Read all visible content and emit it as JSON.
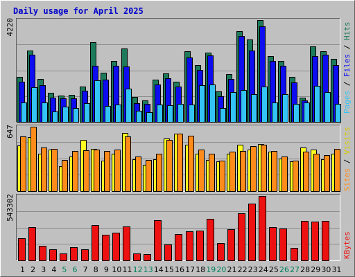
{
  "chart_data": [
    {
      "type": "bar",
      "title": "Daily usage for April 2025",
      "ymax_label": "4220",
      "ylim": [
        0,
        4220
      ],
      "right_labels": [
        "Pages",
        "Files",
        "Hits"
      ],
      "colors": {
        "hits": "#1d7a5a",
        "files": "#0d0df0",
        "pages": "#33c4f5"
      },
      "categories": [
        "1",
        "2",
        "3",
        "4",
        "5",
        "6",
        "7",
        "8",
        "9",
        "10",
        "11",
        "12",
        "13",
        "14",
        "15",
        "16",
        "17",
        "18",
        "19",
        "20",
        "21",
        "22",
        "23",
        "24",
        "25",
        "26",
        "27",
        "28",
        "29",
        "30",
        "31"
      ],
      "series": [
        {
          "name": "Hits",
          "values": [
            1850,
            2930,
            1775,
            1185,
            1075,
            1100,
            1460,
            3280,
            2020,
            2520,
            3030,
            1020,
            870,
            1735,
            1995,
            1640,
            2905,
            2330,
            2850,
            1255,
            1970,
            3730,
            3385,
            4185,
            2700,
            2500,
            1845,
            1010,
            3120,
            2900,
            2585
          ]
        },
        {
          "name": "Files",
          "values": [
            1665,
            2760,
            1520,
            1000,
            960,
            975,
            1270,
            2300,
            1735,
            2300,
            2285,
            780,
            740,
            1540,
            1800,
            1465,
            2650,
            2140,
            2750,
            1060,
            1755,
            3525,
            2930,
            3925,
            2520,
            2310,
            1620,
            880,
            2710,
            2770,
            2330
          ]
        },
        {
          "name": "Pages",
          "values": [
            785,
            1425,
            805,
            420,
            640,
            580,
            780,
            1700,
            670,
            720,
            1365,
            460,
            410,
            720,
            680,
            730,
            710,
            1520,
            1545,
            580,
            1215,
            1325,
            1135,
            1465,
            810,
            1130,
            750,
            810,
            1470,
            1230,
            730
          ]
        }
      ]
    },
    {
      "type": "bar",
      "ymax_label": "647",
      "ylim": [
        0,
        647
      ],
      "right_labels": [
        "Sites",
        "Visits"
      ],
      "colors": {
        "visits": "#ffff22",
        "sites": "#ff8c1a"
      },
      "series": [
        {
          "name": "Visits",
          "values": [
            455,
            540,
            375,
            410,
            250,
            345,
            510,
            420,
            305,
            375,
            575,
            315,
            260,
            320,
            520,
            570,
            460,
            375,
            310,
            295,
            375,
            462,
            415,
            465,
            390,
            325,
            295,
            435,
            410,
            315,
            370
          ]
        },
        {
          "name": "Sites",
          "values": [
            545,
            640,
            435,
            420,
            310,
            400,
            405,
            415,
            400,
            410,
            545,
            345,
            310,
            370,
            510,
            570,
            550,
            415,
            370,
            305,
            390,
            400,
            445,
            460,
            400,
            345,
            300,
            390,
            370,
            360,
            420
          ]
        }
      ]
    },
    {
      "type": "bar",
      "ymax_label": "543302",
      "ylim": [
        0,
        543302
      ],
      "right_labels": [
        "KBytes"
      ],
      "colors": {
        "kbytes": "#ee1111"
      },
      "series": [
        {
          "name": "KBytes",
          "values": [
            185000,
            275000,
            120000,
            90000,
            55000,
            110000,
            90000,
            295000,
            215000,
            230000,
            285000,
            60000,
            50000,
            335000,
            135000,
            220000,
            245000,
            250000,
            345000,
            145000,
            260000,
            395000,
            475000,
            538000,
            275000,
            265000,
            105000,
            330000,
            325000,
            330000,
            0
          ]
        }
      ]
    }
  ],
  "weekend_days": [
    5,
    6,
    12,
    13,
    19,
    20,
    26,
    27
  ],
  "colors": {
    "page_bg": "#c0c0c0",
    "title": "#0000cc",
    "axis_text": "#000000",
    "weekend_text": "#00805c",
    "grid": "#8c8c8c",
    "bevel_light": "#ffffff",
    "bevel_dark": "#606060"
  }
}
